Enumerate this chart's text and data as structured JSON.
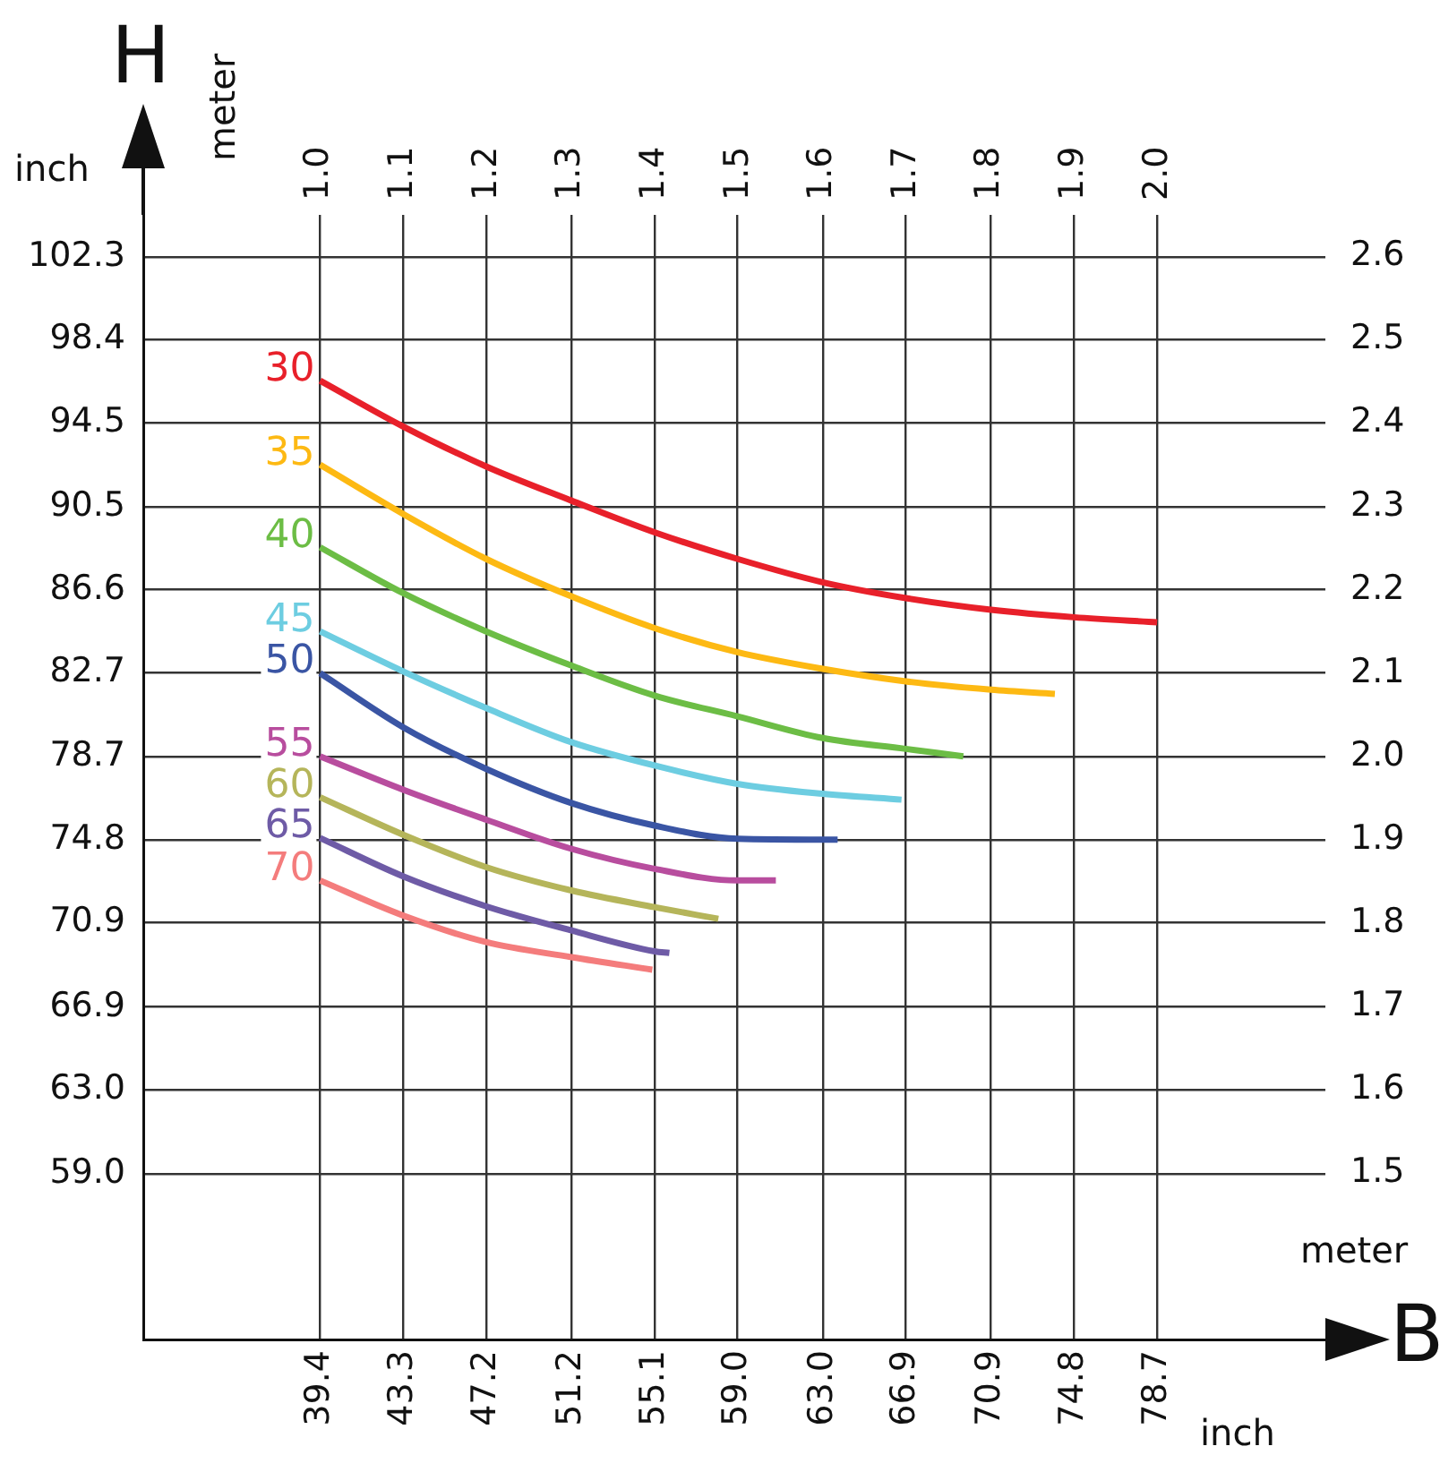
{
  "chart_data": {
    "type": "line",
    "xlabel": "inch",
    "ylabel": "inch",
    "x2label": "meter",
    "y2label": "meter",
    "annotations": [
      "H",
      "B"
    ],
    "xlim": [
      31.1,
      86.6
    ],
    "x2lim": [
      0.79,
      2.2
    ],
    "ylim": [
      51.2,
      104.3
    ],
    "y2lim": [
      1.3,
      2.65
    ],
    "xticks": [
      39.4,
      43.3,
      47.2,
      51.2,
      55.1,
      {
        "value": 59.0,
        "label": "59.0"
      },
      {
        "value": 63.0,
        "label": "63.0"
      },
      66.9,
      70.9,
      74.8,
      78.7
    ],
    "x2ticks": [
      {
        "value": 1.0,
        "label": "1.0"
      },
      1.1,
      1.2,
      1.3,
      1.4,
      1.5,
      1.6,
      1.7,
      1.8,
      1.9,
      {
        "value": 2.0,
        "label": "2.0"
      }
    ],
    "yticks": [
      {
        "value": 59.0,
        "label": "59.0"
      },
      {
        "value": 63.0,
        "label": "63.0"
      },
      66.9,
      70.9,
      74.8,
      78.7,
      82.7,
      86.6,
      90.5,
      94.5,
      98.4,
      102.3
    ],
    "y2ticks": [
      1.5,
      1.6,
      1.7,
      1.8,
      1.9,
      {
        "value": 2.0,
        "label": "2.0"
      },
      2.1,
      2.2,
      2.3,
      2.4,
      2.5,
      2.6
    ],
    "grid": true,
    "legend": false,
    "marker": "none",
    "line_style": "solid",
    "series": [
      {
        "name": "30",
        "color": "#e8202a",
        "axis": "y2",
        "x": [
          39.4,
          43.3,
          47.2,
          51.2,
          55.1,
          59.0,
          63.0,
          66.9,
          70.9,
          74.8,
          78.7
        ],
        "values": [
          2.451,
          2.396,
          2.348,
          2.307,
          2.269,
          2.237,
          2.209,
          2.19,
          2.176,
          2.167,
          2.161
        ]
      },
      {
        "name": "35",
        "color": "#fdb913",
        "axis": "y2",
        "x": [
          39.4,
          43.3,
          47.2,
          51.2,
          55.1,
          59.0,
          63.0,
          66.9,
          70.9,
          73.9
        ],
        "values": [
          2.35,
          2.291,
          2.237,
          2.192,
          2.154,
          2.125,
          2.105,
          2.09,
          2.08,
          2.075
        ]
      },
      {
        "name": "40",
        "color": "#6cbd45",
        "axis": "y2",
        "x": [
          39.4,
          43.3,
          47.2,
          51.2,
          55.1,
          59.0,
          63.0,
          66.9,
          69.6
        ],
        "values": [
          2.251,
          2.196,
          2.15,
          2.109,
          2.073,
          2.048,
          2.022,
          2.009,
          2.0
        ]
      },
      {
        "name": "45",
        "color": "#6dcde1",
        "axis": "y2",
        "x": [
          39.4,
          43.3,
          47.2,
          51.2,
          55.1,
          59.0,
          63.0,
          66.7
        ],
        "values": [
          2.15,
          2.102,
          2.058,
          2.017,
          1.989,
          1.967,
          1.955,
          1.948
        ]
      },
      {
        "name": "50",
        "color": "#3a55a4",
        "axis": "y2",
        "x": [
          39.4,
          43.3,
          47.2,
          51.2,
          55.1,
          59.0,
          63.0,
          63.7
        ],
        "values": [
          2.1,
          2.035,
          1.985,
          1.944,
          1.917,
          1.901,
          1.9,
          1.9
        ]
      },
      {
        "name": "55",
        "color": "#b84d9e",
        "axis": "y2",
        "x": [
          39.4,
          43.3,
          47.2,
          51.2,
          55.1,
          59.0,
          60.8
        ],
        "values": [
          2.0,
          1.96,
          1.924,
          1.889,
          1.865,
          1.851,
          1.851
        ]
      },
      {
        "name": "60",
        "color": "#b5b55a",
        "axis": "y2",
        "x": [
          39.4,
          43.3,
          47.2,
          51.2,
          55.1,
          58.1
        ],
        "values": [
          1.951,
          1.906,
          1.867,
          1.839,
          1.819,
          1.805
        ]
      },
      {
        "name": "65",
        "color": "#6e5ba6",
        "axis": "y2",
        "x": [
          39.4,
          43.3,
          47.2,
          51.2,
          55.1,
          55.8
        ],
        "values": [
          1.902,
          1.856,
          1.82,
          1.791,
          1.766,
          1.764
        ]
      },
      {
        "name": "70",
        "color": "#f47c7c",
        "axis": "y2",
        "x": [
          39.4,
          43.3,
          47.2,
          51.2,
          55.0
        ],
        "values": [
          1.851,
          1.809,
          1.777,
          1.759,
          1.744
        ]
      }
    ]
  }
}
